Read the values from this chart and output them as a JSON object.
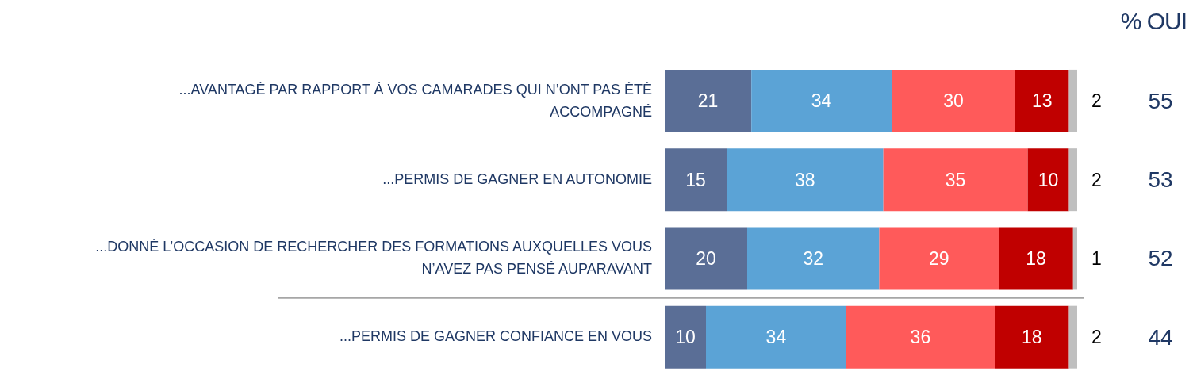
{
  "chart_data": {
    "type": "bar",
    "orientation": "horizontal",
    "stacked": true,
    "tick_labels": "y",
    "data_labels": true,
    "categories": [
      "...AVANTAGÉ PAR RAPPORT À VOS CAMARADES QUI N’ONT PAS ÉTÉ ACCOMPAGNÉ",
      "...PERMIS DE GAGNER EN AUTONOMIE",
      "...DONNÉ L’OCCASION DE RECHERCHER DES FORMATIONS AUXQUELLES VOUS N’AVEZ PAS PENSÉ AUPARAVANT",
      "...PERMIS DE GAGNER CONFIANCE EN VOUS"
    ],
    "series": [
      {
        "color": "#5a6e96",
        "values": [
          21,
          15,
          20,
          10
        ]
      },
      {
        "color": "#5ba3d6",
        "values": [
          34,
          38,
          32,
          34
        ]
      },
      {
        "color": "#ff5a5a",
        "values": [
          30,
          35,
          29,
          36
        ]
      },
      {
        "color": "#c00000",
        "values": [
          13,
          10,
          18,
          18
        ]
      },
      {
        "color": "#bfbfbf",
        "values": [
          2,
          2,
          1,
          2
        ]
      }
    ],
    "annotations": [
      "% OUI",
      "55",
      "53",
      "52",
      "44"
    ]
  }
}
